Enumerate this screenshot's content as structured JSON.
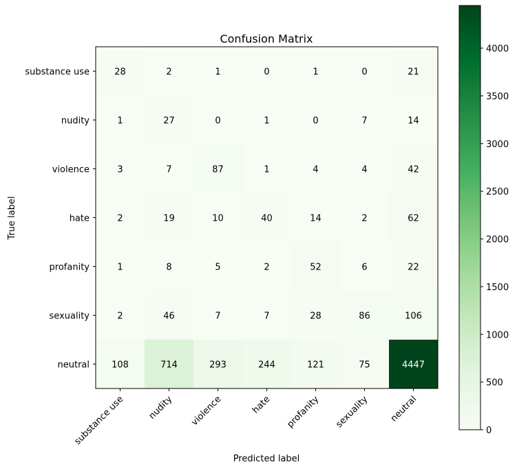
{
  "chart_data": {
    "type": "heatmap",
    "title": "Confusion Matrix",
    "xlabel": "Predicted label",
    "ylabel": "True label",
    "x_categories": [
      "substance use",
      "nudity",
      "violence",
      "hate",
      "profanity",
      "sexuality",
      "neutral"
    ],
    "y_categories": [
      "substance use",
      "nudity",
      "violence",
      "hate",
      "profanity",
      "sexuality",
      "neutral"
    ],
    "values": [
      [
        28,
        2,
        1,
        0,
        1,
        0,
        21
      ],
      [
        1,
        27,
        0,
        1,
        0,
        7,
        14
      ],
      [
        3,
        7,
        87,
        1,
        4,
        4,
        42
      ],
      [
        2,
        19,
        10,
        40,
        14,
        2,
        62
      ],
      [
        1,
        8,
        5,
        2,
        52,
        6,
        22
      ],
      [
        2,
        46,
        7,
        7,
        28,
        86,
        106
      ],
      [
        108,
        714,
        293,
        244,
        121,
        75,
        4447
      ]
    ],
    "colormap": "Greens",
    "color_range": [
      0,
      4447
    ],
    "colorbar_ticks": [
      0,
      500,
      1000,
      1500,
      2000,
      2500,
      3000,
      3500,
      4000
    ],
    "cell_label_colors": {
      "light": "#000000",
      "dark": "#ffffff"
    }
  }
}
